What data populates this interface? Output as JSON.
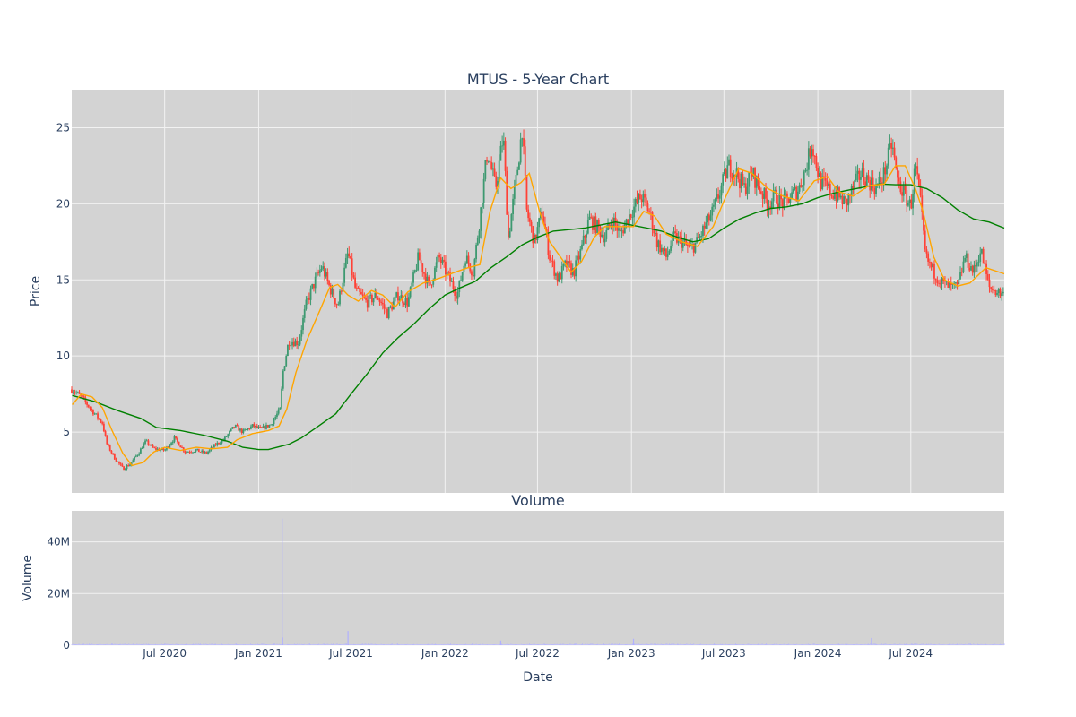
{
  "chart_data": [
    {
      "type": "candlestick",
      "title": "MTUS - 5-Year Chart",
      "xlabel": "",
      "ylabel": "Price",
      "x_range": [
        "2020-01-01",
        "2024-12-31"
      ],
      "ylim": [
        1,
        27.5
      ],
      "y_ticks": [
        5,
        10,
        15,
        20,
        25
      ],
      "grid": true,
      "colors": {
        "plot_bg": "#d3d3d3",
        "grid": "#f2f2f2",
        "up": "#3d9970",
        "down": "#ff4136",
        "ma_short": "#ffa500",
        "ma_long": "#008000",
        "text": "#2a3f5f"
      },
      "close_path": [
        [
          "2020-01-02",
          7.8
        ],
        [
          "2020-01-20",
          7.3
        ],
        [
          "2020-02-10",
          6.4
        ],
        [
          "2020-03-01",
          5.6
        ],
        [
          "2020-03-10",
          4.2
        ],
        [
          "2020-03-25",
          3.3
        ],
        [
          "2020-04-10",
          2.6
        ],
        [
          "2020-04-25",
          2.9
        ],
        [
          "2020-05-10",
          3.6
        ],
        [
          "2020-05-25",
          4.4
        ],
        [
          "2020-06-10",
          3.9
        ],
        [
          "2020-07-01",
          3.8
        ],
        [
          "2020-07-20",
          4.6
        ],
        [
          "2020-08-10",
          3.7
        ],
        [
          "2020-09-01",
          3.8
        ],
        [
          "2020-09-20",
          3.6
        ],
        [
          "2020-10-10",
          4.2
        ],
        [
          "2020-10-25",
          4.5
        ],
        [
          "2020-11-15",
          5.4
        ],
        [
          "2020-12-01",
          5.0
        ],
        [
          "2020-12-20",
          5.4
        ],
        [
          "2021-01-05",
          5.2
        ],
        [
          "2021-01-25",
          5.5
        ],
        [
          "2021-02-12",
          6.5
        ],
        [
          "2021-02-18",
          9.0
        ],
        [
          "2021-03-01",
          11.0
        ],
        [
          "2021-03-20",
          10.9
        ],
        [
          "2021-04-05",
          13.5
        ],
        [
          "2021-04-20",
          14.8
        ],
        [
          "2021-05-05",
          15.9
        ],
        [
          "2021-05-20",
          14.5
        ],
        [
          "2021-06-05",
          13.3
        ],
        [
          "2021-06-25",
          16.8
        ],
        [
          "2021-07-10",
          14.3
        ],
        [
          "2021-08-01",
          13.5
        ],
        [
          "2021-08-20",
          14.0
        ],
        [
          "2021-09-10",
          12.8
        ],
        [
          "2021-10-01",
          14.0
        ],
        [
          "2021-10-20",
          13.5
        ],
        [
          "2021-11-10",
          16.5
        ],
        [
          "2021-12-01",
          14.5
        ],
        [
          "2021-12-20",
          16.5
        ],
        [
          "2022-01-10",
          15.0
        ],
        [
          "2022-01-25",
          14.0
        ],
        [
          "2022-02-10",
          16.5
        ],
        [
          "2022-02-25",
          15.5
        ],
        [
          "2022-03-10",
          19.0
        ],
        [
          "2022-03-25",
          23.5
        ],
        [
          "2022-04-10",
          21.0
        ],
        [
          "2022-04-25",
          24.5
        ],
        [
          "2022-05-05",
          17.8
        ],
        [
          "2022-05-20",
          21.5
        ],
        [
          "2022-06-01",
          25.0
        ],
        [
          "2022-06-10",
          19.5
        ],
        [
          "2022-06-25",
          17.5
        ],
        [
          "2022-07-10",
          19.5
        ],
        [
          "2022-07-25",
          16.5
        ],
        [
          "2022-08-10",
          15.0
        ],
        [
          "2022-08-25",
          16.0
        ],
        [
          "2022-09-10",
          15.5
        ],
        [
          "2022-09-25",
          17.0
        ],
        [
          "2022-10-10",
          19.0
        ],
        [
          "2022-10-25",
          18.5
        ],
        [
          "2022-11-10",
          17.8
        ],
        [
          "2022-11-25",
          19.0
        ],
        [
          "2022-12-10",
          18.0
        ],
        [
          "2023-01-01",
          19.5
        ],
        [
          "2023-01-20",
          20.5
        ],
        [
          "2023-02-05",
          19.5
        ],
        [
          "2023-02-20",
          17.5
        ],
        [
          "2023-03-10",
          16.5
        ],
        [
          "2023-03-25",
          17.8
        ],
        [
          "2023-04-10",
          17.5
        ],
        [
          "2023-04-25",
          17.0
        ],
        [
          "2023-05-10",
          17.5
        ],
        [
          "2023-05-25",
          18.5
        ],
        [
          "2023-06-10",
          19.5
        ],
        [
          "2023-06-25",
          21.0
        ],
        [
          "2023-07-10",
          22.5
        ],
        [
          "2023-07-25",
          22.0
        ],
        [
          "2023-08-10",
          21.0
        ],
        [
          "2023-08-25",
          22.0
        ],
        [
          "2023-09-10",
          21.0
        ],
        [
          "2023-09-25",
          20.0
        ],
        [
          "2023-10-10",
          20.5
        ],
        [
          "2023-10-25",
          20.0
        ],
        [
          "2023-11-10",
          20.5
        ],
        [
          "2023-11-25",
          21.0
        ],
        [
          "2023-12-10",
          22.5
        ],
        [
          "2023-12-20",
          24.0
        ],
        [
          "2024-01-05",
          21.5
        ],
        [
          "2024-01-25",
          20.8
        ],
        [
          "2024-02-10",
          20.5
        ],
        [
          "2024-02-25",
          20.0
        ],
        [
          "2024-03-10",
          21.0
        ],
        [
          "2024-03-25",
          22.0
        ],
        [
          "2024-04-10",
          21.5
        ],
        [
          "2024-04-25",
          21.0
        ],
        [
          "2024-05-10",
          22.0
        ],
        [
          "2024-05-25",
          24.0
        ],
        [
          "2024-06-05",
          21.5
        ],
        [
          "2024-06-20",
          20.5
        ],
        [
          "2024-07-01",
          19.8
        ],
        [
          "2024-07-10",
          22.5
        ],
        [
          "2024-07-20",
          20.0
        ],
        [
          "2024-07-30",
          16.5
        ],
        [
          "2024-08-15",
          15.5
        ],
        [
          "2024-09-01",
          14.8
        ],
        [
          "2024-09-15",
          14.5
        ],
        [
          "2024-10-01",
          14.5
        ],
        [
          "2024-10-15",
          16.5
        ],
        [
          "2024-11-01",
          15.5
        ],
        [
          "2024-11-15",
          17.0
        ],
        [
          "2024-12-01",
          14.5
        ],
        [
          "2024-12-31",
          14.0
        ]
      ],
      "ma_short_path": [
        [
          "2020-01-02",
          6.8
        ],
        [
          "2020-01-20",
          7.5
        ],
        [
          "2020-02-10",
          7.3
        ],
        [
          "2020-03-01",
          6.6
        ],
        [
          "2020-03-20",
          5.1
        ],
        [
          "2020-04-10",
          3.6
        ],
        [
          "2020-04-28",
          2.8
        ],
        [
          "2020-05-20",
          3.0
        ],
        [
          "2020-06-10",
          3.7
        ],
        [
          "2020-07-01",
          4.0
        ],
        [
          "2020-08-01",
          3.8
        ],
        [
          "2020-09-01",
          4.0
        ],
        [
          "2020-10-01",
          3.9
        ],
        [
          "2020-11-01",
          4.0
        ],
        [
          "2020-11-20",
          4.5
        ],
        [
          "2020-12-20",
          4.9
        ],
        [
          "2021-01-20",
          5.1
        ],
        [
          "2021-02-10",
          5.4
        ],
        [
          "2021-02-25",
          6.5
        ],
        [
          "2021-03-15",
          8.9
        ],
        [
          "2021-04-05",
          11.0
        ],
        [
          "2021-05-01",
          13.0
        ],
        [
          "2021-05-20",
          14.5
        ],
        [
          "2021-06-05",
          14.7
        ],
        [
          "2021-06-25",
          14.0
        ],
        [
          "2021-07-15",
          13.6
        ],
        [
          "2021-08-10",
          14.3
        ],
        [
          "2021-09-01",
          14.0
        ],
        [
          "2021-09-25",
          13.2
        ],
        [
          "2021-10-20",
          14.2
        ],
        [
          "2021-11-20",
          14.8
        ],
        [
          "2021-12-20",
          15.1
        ],
        [
          "2022-01-20",
          15.5
        ],
        [
          "2022-02-15",
          15.8
        ],
        [
          "2022-03-10",
          16.0
        ],
        [
          "2022-03-30",
          19.5
        ],
        [
          "2022-04-20",
          21.7
        ],
        [
          "2022-05-10",
          21.0
        ],
        [
          "2022-05-30",
          21.4
        ],
        [
          "2022-06-15",
          22.0
        ],
        [
          "2022-07-05",
          19.5
        ],
        [
          "2022-07-25",
          17.5
        ],
        [
          "2022-08-15",
          16.5
        ],
        [
          "2022-09-05",
          15.5
        ],
        [
          "2022-09-25",
          16.2
        ],
        [
          "2022-10-20",
          17.8
        ],
        [
          "2022-11-10",
          18.5
        ],
        [
          "2022-12-10",
          18.5
        ],
        [
          "2023-01-05",
          18.5
        ],
        [
          "2023-01-25",
          19.5
        ],
        [
          "2023-02-15",
          19.2
        ],
        [
          "2023-03-10",
          18.0
        ],
        [
          "2023-04-10",
          17.5
        ],
        [
          "2023-05-10",
          17.2
        ],
        [
          "2023-06-10",
          18.5
        ],
        [
          "2023-07-05",
          20.5
        ],
        [
          "2023-07-30",
          22.3
        ],
        [
          "2023-08-25",
          22.0
        ],
        [
          "2023-09-25",
          21.0
        ],
        [
          "2023-10-25",
          20.5
        ],
        [
          "2023-11-25",
          20.2
        ],
        [
          "2023-12-25",
          21.5
        ],
        [
          "2024-01-20",
          21.8
        ],
        [
          "2024-02-10",
          20.8
        ],
        [
          "2024-03-10",
          20.5
        ],
        [
          "2024-04-10",
          21.2
        ],
        [
          "2024-05-10",
          21.3
        ],
        [
          "2024-06-01",
          22.5
        ],
        [
          "2024-06-20",
          22.5
        ],
        [
          "2024-07-10",
          21.0
        ],
        [
          "2024-07-25",
          19.5
        ],
        [
          "2024-08-15",
          16.5
        ],
        [
          "2024-09-05",
          15.0
        ],
        [
          "2024-10-01",
          14.6
        ],
        [
          "2024-10-25",
          14.8
        ],
        [
          "2024-11-25",
          15.8
        ],
        [
          "2024-12-31",
          15.4
        ]
      ],
      "ma_long_path": [
        [
          "2020-01-02",
          7.4
        ],
        [
          "2020-02-15",
          7.0
        ],
        [
          "2020-04-01",
          6.4
        ],
        [
          "2020-05-15",
          5.9
        ],
        [
          "2020-06-15",
          5.3
        ],
        [
          "2020-08-01",
          5.1
        ],
        [
          "2020-09-15",
          4.8
        ],
        [
          "2020-11-01",
          4.4
        ],
        [
          "2020-12-01",
          4.0
        ],
        [
          "2021-01-01",
          3.85
        ],
        [
          "2021-01-20",
          3.85
        ],
        [
          "2021-03-01",
          4.2
        ],
        [
          "2021-03-25",
          4.6
        ],
        [
          "2021-04-20",
          5.2
        ],
        [
          "2021-06-01",
          6.2
        ],
        [
          "2021-07-01",
          7.5
        ],
        [
          "2021-08-01",
          8.8
        ],
        [
          "2021-09-01",
          10.2
        ],
        [
          "2021-10-01",
          11.2
        ],
        [
          "2021-11-01",
          12.1
        ],
        [
          "2021-12-01",
          13.1
        ],
        [
          "2022-01-01",
          14.0
        ],
        [
          "2022-02-01",
          14.5
        ],
        [
          "2022-03-01",
          14.9
        ],
        [
          "2022-04-01",
          15.8
        ],
        [
          "2022-05-01",
          16.5
        ],
        [
          "2022-06-01",
          17.3
        ],
        [
          "2022-07-01",
          17.8
        ],
        [
          "2022-08-01",
          18.2
        ],
        [
          "2022-09-01",
          18.3
        ],
        [
          "2022-10-01",
          18.4
        ],
        [
          "2022-11-01",
          18.6
        ],
        [
          "2022-12-01",
          18.8
        ],
        [
          "2023-01-01",
          18.6
        ],
        [
          "2023-02-01",
          18.4
        ],
        [
          "2023-03-01",
          18.2
        ],
        [
          "2023-04-01",
          17.8
        ],
        [
          "2023-05-01",
          17.5
        ],
        [
          "2023-06-01",
          17.7
        ],
        [
          "2023-07-01",
          18.4
        ],
        [
          "2023-08-01",
          19.0
        ],
        [
          "2023-09-01",
          19.4
        ],
        [
          "2023-10-01",
          19.7
        ],
        [
          "2023-11-01",
          19.8
        ],
        [
          "2023-12-01",
          20.0
        ],
        [
          "2024-01-01",
          20.4
        ],
        [
          "2024-02-01",
          20.7
        ],
        [
          "2024-03-01",
          20.9
        ],
        [
          "2024-04-01",
          21.1
        ],
        [
          "2024-05-01",
          21.3
        ],
        [
          "2024-06-01",
          21.25
        ],
        [
          "2024-07-01",
          21.25
        ],
        [
          "2024-08-01",
          21.0
        ],
        [
          "2024-09-01",
          20.4
        ],
        [
          "2024-10-01",
          19.6
        ],
        [
          "2024-11-01",
          19.0
        ],
        [
          "2024-12-01",
          18.8
        ],
        [
          "2024-12-31",
          18.4
        ]
      ]
    },
    {
      "type": "bar",
      "title": "Volume",
      "xlabel": "Date",
      "ylabel": "Volume",
      "x_range": [
        "2020-01-01",
        "2024-12-31"
      ],
      "ylim": [
        0,
        52000000
      ],
      "y_ticks": [
        0,
        20000000,
        40000000
      ],
      "y_tick_labels": [
        "0",
        "20M",
        "40M"
      ],
      "x_ticks": [
        "2020-07-01",
        "2021-01-01",
        "2021-07-01",
        "2022-01-01",
        "2022-07-01",
        "2023-01-01",
        "2023-07-01",
        "2024-01-01",
        "2024-07-01"
      ],
      "x_tick_labels": [
        "Jul 2020",
        "Jan 2021",
        "Jul 2021",
        "Jan 2022",
        "Jul 2022",
        "Jan 2023",
        "Jul 2023",
        "Jan 2024",
        "Jul 2024"
      ],
      "grid": true,
      "colors": {
        "bar": "#b0b0ff"
      },
      "spikes": [
        [
          "2021-02-16",
          49000000
        ],
        [
          "2021-02-17",
          3000000
        ],
        [
          "2021-06-25",
          5500000
        ],
        [
          "2022-04-20",
          1800000
        ],
        [
          "2023-01-05",
          2500000
        ],
        [
          "2024-04-15",
          2800000
        ]
      ],
      "baseline": 600000
    }
  ]
}
